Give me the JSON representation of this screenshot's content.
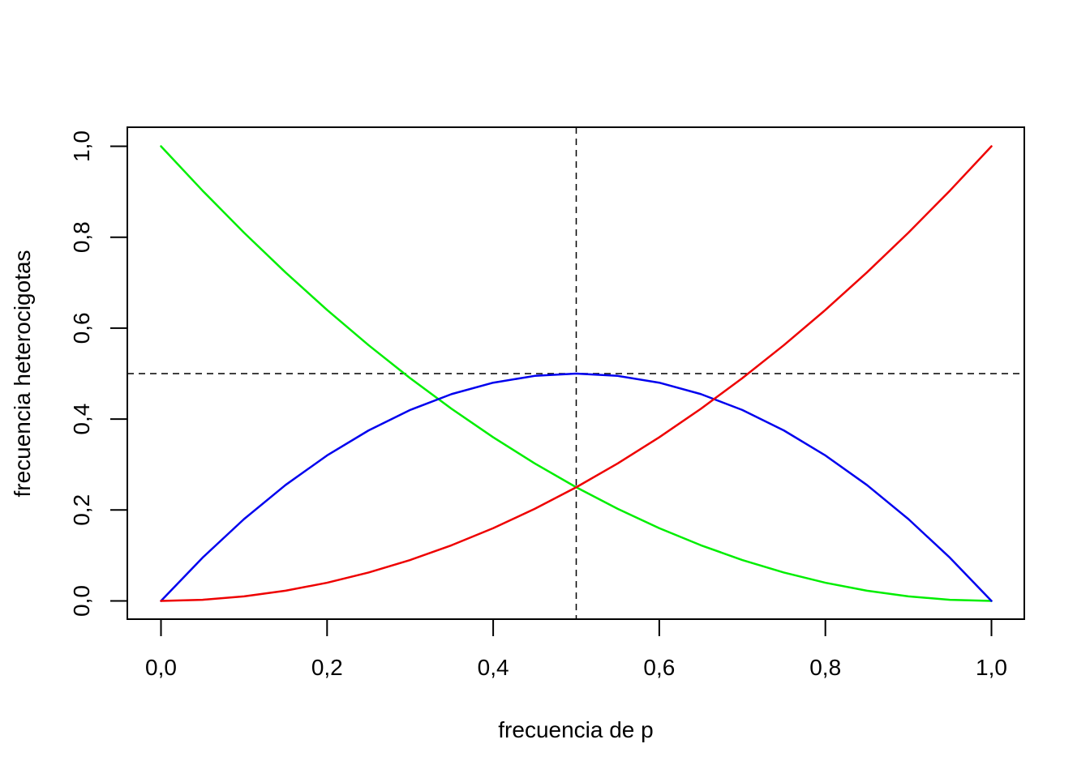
{
  "chart_data": {
    "type": "line",
    "title": "",
    "xlabel": "frecuencia de p",
    "ylabel": "frecuencia heterocigotas",
    "xlim": [
      0,
      1
    ],
    "ylim": [
      0,
      1
    ],
    "grid": false,
    "x_ticks": [
      0,
      0.2,
      0.4,
      0.6,
      0.8,
      1.0
    ],
    "x_tick_labels": [
      "0,0",
      "0,2",
      "0,4",
      "0,6",
      "0,8",
      "1,0"
    ],
    "y_ticks": [
      0,
      0.2,
      0.4,
      0.6,
      0.8,
      1.0
    ],
    "y_tick_labels": [
      "0,0",
      "0,2",
      "0,4",
      "0,6",
      "0,8",
      "1,0"
    ],
    "x": [
      0,
      0.05,
      0.1,
      0.15,
      0.2,
      0.25,
      0.3,
      0.35,
      0.4,
      0.45,
      0.5,
      0.55,
      0.6,
      0.65,
      0.7,
      0.75,
      0.8,
      0.85,
      0.9,
      0.95,
      1.0
    ],
    "series": [
      {
        "color": "#00ee00",
        "values": [
          1.0,
          0.9025,
          0.81,
          0.7225,
          0.64,
          0.5625,
          0.49,
          0.4225,
          0.36,
          0.3025,
          0.25,
          0.2025,
          0.16,
          0.1225,
          0.09,
          0.0625,
          0.04,
          0.0225,
          0.01,
          0.0025,
          0.0
        ]
      },
      {
        "color": "#0000ee",
        "values": [
          0.0,
          0.095,
          0.18,
          0.255,
          0.32,
          0.375,
          0.42,
          0.455,
          0.48,
          0.495,
          0.5,
          0.495,
          0.48,
          0.455,
          0.42,
          0.375,
          0.32,
          0.255,
          0.18,
          0.095,
          0.0
        ]
      },
      {
        "color": "#ee0000",
        "values": [
          0.0,
          0.0025,
          0.01,
          0.0225,
          0.04,
          0.0625,
          0.09,
          0.1225,
          0.16,
          0.2025,
          0.25,
          0.3025,
          0.36,
          0.4225,
          0.49,
          0.5625,
          0.64,
          0.7225,
          0.81,
          0.9025,
          1.0
        ]
      }
    ],
    "reference_lines": [
      {
        "orientation": "vertical",
        "value": 0.5,
        "style": "dashed"
      },
      {
        "orientation": "horizontal",
        "value": 0.5,
        "style": "dashed"
      }
    ]
  }
}
